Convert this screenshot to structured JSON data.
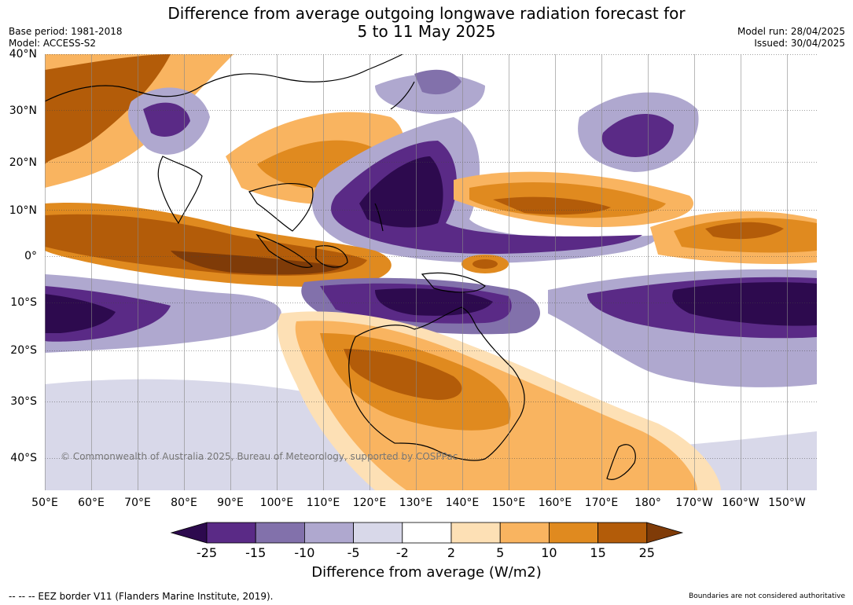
{
  "header": {
    "title_line1": "Difference from average outgoing longwave radiation forecast for",
    "title_line2": "5 to 11 May 2025",
    "base_period": "Base period: 1981-2018",
    "model": "Model: ACCESS-S2",
    "model_run": "Model run: 28/04/2025",
    "issued": "Issued: 30/04/2025"
  },
  "map": {
    "lat_labels": [
      "40°N",
      "30°N",
      "20°N",
      "10°N",
      "0°",
      "10°S",
      "20°S",
      "30°S",
      "40°S"
    ],
    "lon_labels": [
      "50°E",
      "60°E",
      "70°E",
      "80°E",
      "90°E",
      "100°E",
      "110°E",
      "120°E",
      "130°E",
      "140°E",
      "150°E",
      "160°E",
      "170°E",
      "180°",
      "170°W",
      "160°W",
      "150°W"
    ],
    "copyright": "© Commonwealth of Australia 2025, Bureau of Meteorology, supported by COSPPac"
  },
  "colorbar": {
    "ticks": [
      "-25",
      "-15",
      "-10",
      "-5",
      "-2",
      "2",
      "5",
      "10",
      "15",
      "25"
    ],
    "colors": [
      "#2d0a4e",
      "#5a2a86",
      "#8271ab",
      "#afa8cf",
      "#d8d8e9",
      "#ffffff",
      "#fde0b5",
      "#f9b460",
      "#e08a1f",
      "#b35c09",
      "#7f3b08"
    ],
    "title": "Difference from average (W/m2)"
  },
  "footer": {
    "eez": "--  --  -- EEZ border V11 (Flanders Marine Institute, 2019).",
    "disclaimer": "Boundaries are not considered authoritative"
  }
}
